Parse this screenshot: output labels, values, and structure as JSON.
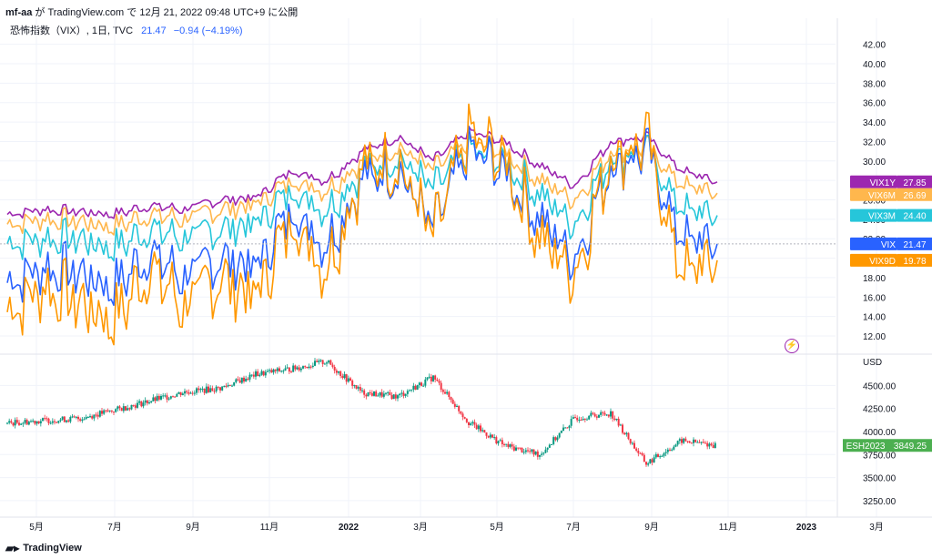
{
  "header": {
    "user": "mf-aa",
    "attribution": " が TradingView.com で 12月 21, 2022 09:48 UTC+9 に公開"
  },
  "legend": {
    "symbol": "恐怖指数（VIX）, 1日, TVC",
    "value": "21.47",
    "change": "−0.94 (−4.19%)"
  },
  "brand": {
    "name": "TradingView",
    "logo": "tradingview-logo-icon"
  },
  "icons": {
    "alert": "lightning-icon"
  },
  "colors": {
    "VIX": "#2962ff",
    "VIX9D": "#ff9800",
    "VIX3M": "#26c6da",
    "VIX6M": "#ffb74d",
    "VIX1Y": "#9c27b0",
    "ES_up": "#089981",
    "ES_down": "#f23645",
    "ES_label": "#4caf50",
    "grid": "#f0f3fa"
  },
  "chart_data": [
    {
      "type": "line",
      "panel": "top",
      "title": "恐怖指数（VIX）, 1日, TVC",
      "y_axis": {
        "range": [
          10.5,
          43
        ],
        "ticks": [
          "42.00",
          "40.00",
          "38.00",
          "36.00",
          "34.00",
          "32.00",
          "30.00",
          "28.00",
          "26.00",
          "24.00",
          "22.00",
          "20.00",
          "18.00",
          "16.00",
          "14.00",
          "12.00"
        ]
      },
      "x": [
        "2021-04",
        "2021-05",
        "2021-06",
        "2021-07",
        "2021-08",
        "2021-09",
        "2021-10",
        "2021-11",
        "2021-12",
        "2022-01",
        "2022-02",
        "2022-03",
        "2022-04",
        "2022-05",
        "2022-06",
        "2022-07",
        "2022-08",
        "2022-09",
        "2022-10",
        "2022-11",
        "2022-12"
      ],
      "series": [
        {
          "name": "VIX1Y",
          "last": "27.85",
          "values": [
            24.5,
            25.0,
            24.8,
            24.5,
            25.4,
            25.0,
            26.0,
            26.2,
            29.0,
            28.0,
            31.0,
            32.5,
            30.0,
            33.0,
            32.0,
            29.5,
            27.5,
            32.0,
            32.5,
            29.0,
            27.85
          ]
        },
        {
          "name": "VIX6M",
          "last": "26.69",
          "values": [
            23.5,
            24.0,
            23.8,
            23.2,
            24.5,
            24.0,
            25.0,
            25.5,
            28.0,
            27.0,
            30.0,
            31.5,
            29.0,
            32.0,
            31.0,
            28.0,
            26.0,
            31.0,
            31.5,
            27.5,
            26.69
          ]
        },
        {
          "name": "VIX3M",
          "last": "24.40",
          "values": [
            21.5,
            22.0,
            22.0,
            21.0,
            23.0,
            22.0,
            23.0,
            23.5,
            27.0,
            25.0,
            29.0,
            30.5,
            27.0,
            31.0,
            30.0,
            26.5,
            23.5,
            30.5,
            31.0,
            25.0,
            24.4
          ]
        },
        {
          "name": "VIX",
          "last": "21.47",
          "values": [
            17.5,
            19.0,
            18.5,
            17.0,
            20.5,
            18.0,
            20.0,
            19.0,
            25.0,
            21.5,
            28.0,
            29.0,
            23.0,
            31.0,
            29.0,
            24.0,
            20.0,
            29.5,
            31.0,
            22.0,
            21.47
          ]
        },
        {
          "name": "VIX9D",
          "last": "19.78",
          "values": [
            14.5,
            17.0,
            15.5,
            13.5,
            19.0,
            15.0,
            18.0,
            16.0,
            24.0,
            19.0,
            29.0,
            30.0,
            22.0,
            32.5,
            30.0,
            22.0,
            18.5,
            30.5,
            32.0,
            18.5,
            19.78
          ]
        }
      ],
      "current_line": 21.47
    },
    {
      "type": "candlestick",
      "panel": "bottom",
      "symbol": "ESH2023",
      "last": "3849.25",
      "unit": "USD",
      "y_axis": {
        "range": [
          3150,
          4820
        ],
        "ticks": [
          "4500.00",
          "4250.00",
          "4000.00",
          "3750.00",
          "3500.00",
          "3250.00"
        ]
      },
      "x": [
        "2021-04",
        "2021-05",
        "2021-06",
        "2021-07",
        "2021-08",
        "2021-09",
        "2021-10",
        "2021-11",
        "2021-12",
        "2022-01",
        "2022-02",
        "2022-03",
        "2022-04",
        "2022-05",
        "2022-06",
        "2022-07",
        "2022-08",
        "2022-09",
        "2022-10",
        "2022-11",
        "2022-12"
      ],
      "close": [
        4090,
        4120,
        4140,
        4230,
        4330,
        4430,
        4470,
        4620,
        4680,
        4760,
        4420,
        4380,
        4590,
        4100,
        3850,
        3750,
        4150,
        4200,
        3650,
        3900,
        3849.25
      ]
    }
  ],
  "x_axis": {
    "labels": [
      "5月",
      "7月",
      "9月",
      "11月",
      "2022",
      "3月",
      "5月",
      "7月",
      "9月",
      "11月",
      "2023",
      "3月"
    ]
  }
}
